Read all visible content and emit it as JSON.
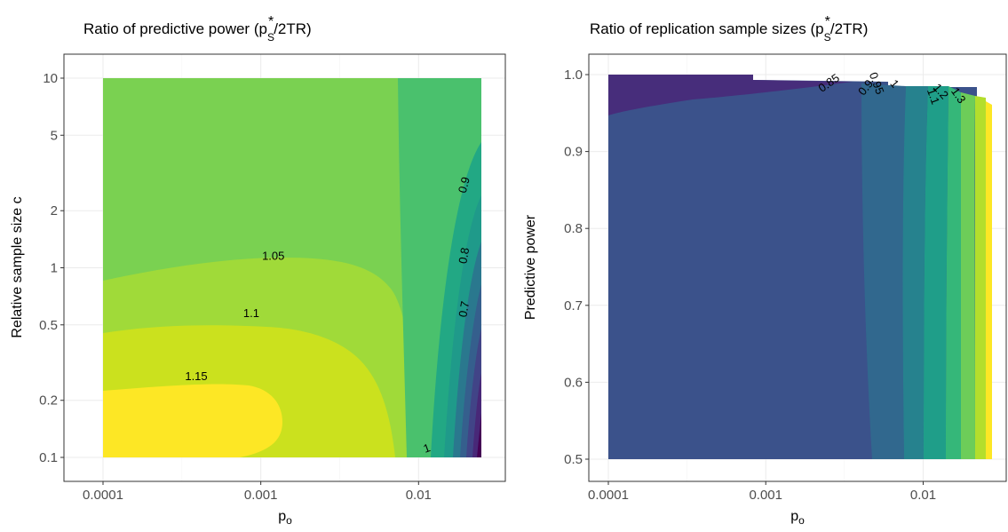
{
  "chart_data": [
    {
      "type": "contour",
      "title": "Ratio of predictive power (p",
      "title_sub": "S",
      "title_sup": "*",
      "title_tail": "/2TR)",
      "xlabel": "p",
      "xlabel_sub": "o",
      "ylabel": "Relative sample size c",
      "x_scale": "log10",
      "y_scale": "log10",
      "xlim": [
        0.0001,
        0.025
      ],
      "ylim": [
        0.1,
        10
      ],
      "x_ticks": [
        {
          "value": 0.0001,
          "label": "0.0001"
        },
        {
          "value": 0.001,
          "label": "0.001"
        },
        {
          "value": 0.01,
          "label": "0.01"
        }
      ],
      "y_ticks": [
        {
          "value": 0.1,
          "label": "0.1"
        },
        {
          "value": 0.2,
          "label": "0.2"
        },
        {
          "value": 0.5,
          "label": "0.5"
        },
        {
          "value": 1,
          "label": "1"
        },
        {
          "value": 2,
          "label": "2"
        },
        {
          "value": 5,
          "label": "5"
        },
        {
          "value": 10,
          "label": "10"
        }
      ],
      "grid": true,
      "contour_labels": [
        {
          "label": "1.05",
          "x": 0.0012,
          "y": 1.1
        },
        {
          "label": "1.1",
          "x": 0.00087,
          "y": 0.55
        },
        {
          "label": "1.15",
          "x": 0.00039,
          "y": 0.255
        },
        {
          "label": "1",
          "x": 0.0115,
          "y": 0.107
        },
        {
          "label": "0.9",
          "x": 0.0205,
          "y": 2.7
        },
        {
          "label": "0.8",
          "x": 0.0205,
          "y": 1.15
        },
        {
          "label": "0.7",
          "x": 0.0205,
          "y": 0.6
        }
      ]
    },
    {
      "type": "contour",
      "title": "Ratio of replication sample sizes (p",
      "title_sub": "S",
      "title_sup": "*",
      "title_tail": "/2TR)",
      "xlabel": "p",
      "xlabel_sub": "o",
      "ylabel": "Predictive power",
      "x_scale": "log10",
      "y_scale": "linear",
      "xlim": [
        0.0001,
        0.025
      ],
      "ylim": [
        0.5,
        1.0
      ],
      "x_ticks": [
        {
          "value": 0.0001,
          "label": "0.0001"
        },
        {
          "value": 0.001,
          "label": "0.001"
        },
        {
          "value": 0.01,
          "label": "0.01"
        }
      ],
      "y_ticks": [
        {
          "value": 0.5,
          "label": "0.5"
        },
        {
          "value": 0.6,
          "label": "0.6"
        },
        {
          "value": 0.7,
          "label": "0.7"
        },
        {
          "value": 0.8,
          "label": "0.8"
        },
        {
          "value": 0.9,
          "label": "0.9"
        },
        {
          "value": 1.0,
          "label": "1.0"
        }
      ],
      "grid": true,
      "contour_labels": [
        {
          "label": "0.85",
          "x": 0.0026,
          "y": 0.985
        },
        {
          "label": "0.9",
          "x": 0.0045,
          "y": 0.98
        },
        {
          "label": "0.95",
          "x": 0.0048,
          "y": 0.987
        },
        {
          "label": "1",
          "x": 0.0063,
          "y": 0.985
        },
        {
          "label": "1.1",
          "x": 0.011,
          "y": 0.97
        },
        {
          "label": "1.2",
          "x": 0.0124,
          "y": 0.975
        },
        {
          "label": "1.3",
          "x": 0.016,
          "y": 0.97
        }
      ]
    }
  ]
}
